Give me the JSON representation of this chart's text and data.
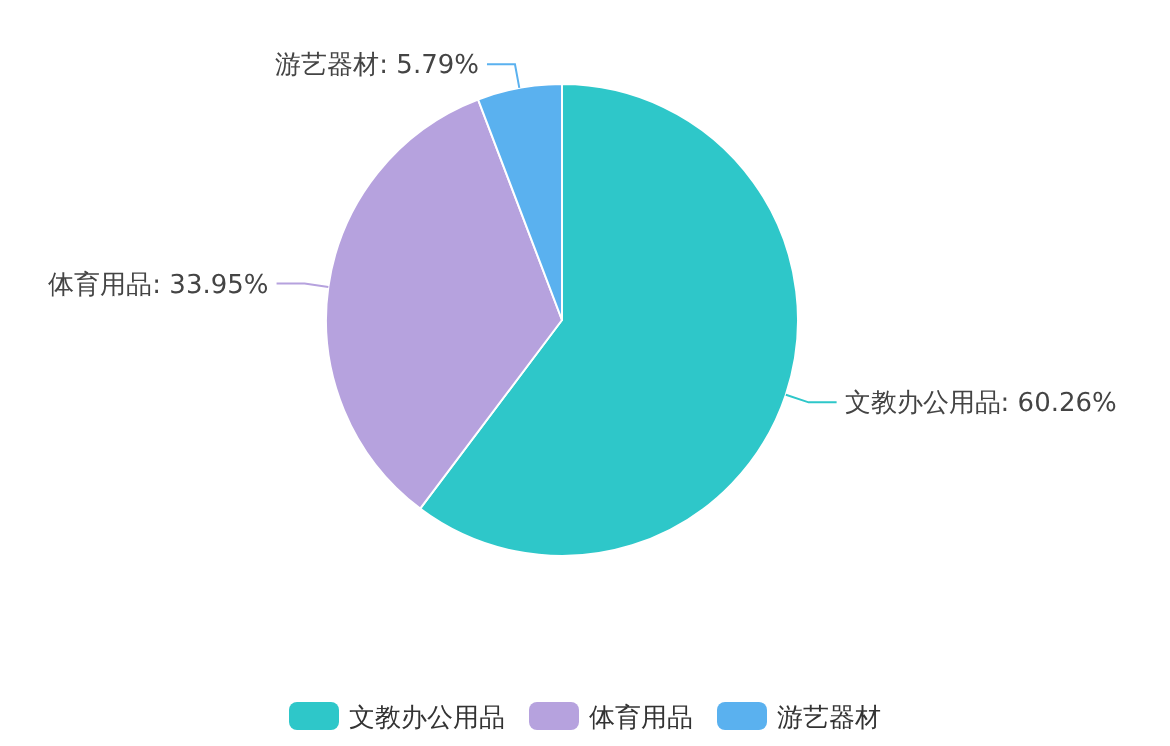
{
  "chart_data": {
    "type": "pie",
    "categories": [
      "文教办公用品",
      "体育用品",
      "游艺器材"
    ],
    "values": [
      60.26,
      33.95,
      5.79
    ],
    "colors": [
      "#2ec7c9",
      "#b6a2de",
      "#5ab1ef"
    ],
    "value_labels": [
      "文教办公用品: 60.26%",
      "体育用品: 33.95%",
      "游艺器材: 5.79%"
    ],
    "legend": "bottom"
  }
}
